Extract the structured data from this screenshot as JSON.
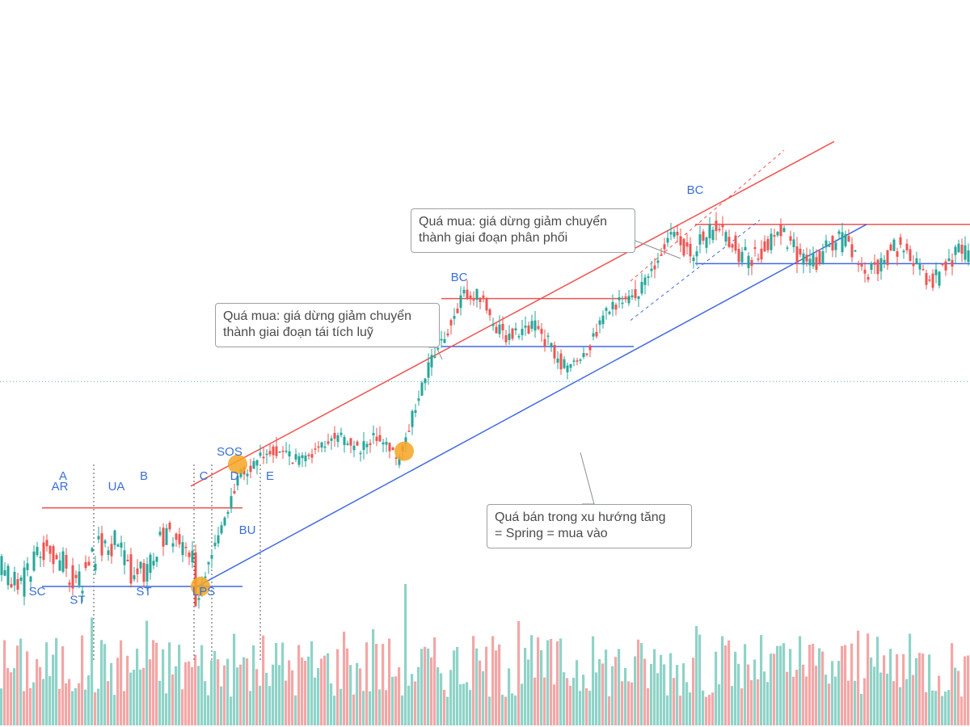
{
  "chart_data": {
    "type": "candlestick",
    "title": "",
    "xlabel": "",
    "ylabel": "",
    "grid": false,
    "ylim": [
      0,
      100
    ],
    "volume_ylim": [
      0,
      100
    ],
    "colors": {
      "up": "#26a69a",
      "down": "#ef5350",
      "up_volume": "#8fd3c8",
      "down_volume": "#f4a6a6",
      "resistance": "#ef5350",
      "support": "#4169e1",
      "label": "#3b6fd4",
      "highlight": "#f5a623",
      "dotted_reference": "#26a69a"
    },
    "segments": [
      {
        "name": "accumulation-range",
        "from": 0,
        "to": 120,
        "start": 14,
        "end": 18,
        "amp": 7,
        "seed": 3
      },
      {
        "name": "spring",
        "from": 120,
        "to": 122,
        "start": 18,
        "end": 6,
        "amp": 1,
        "seed": 5
      },
      {
        "name": "markup-sos",
        "from": 122,
        "to": 150,
        "start": 6,
        "end": 38,
        "amp": 2,
        "seed": 7
      },
      {
        "name": "markup-rally",
        "from": 150,
        "to": 230,
        "start": 38,
        "end": 44,
        "amp": 3,
        "seed": 11
      },
      {
        "name": "pullback-spring",
        "from": 230,
        "to": 245,
        "start": 44,
        "end": 40,
        "amp": 2,
        "seed": 13
      },
      {
        "name": "rally-to-bc",
        "from": 245,
        "to": 285,
        "start": 40,
        "end": 76,
        "amp": 3,
        "seed": 17
      },
      {
        "name": "reaccumulation",
        "from": 285,
        "to": 355,
        "start": 76,
        "end": 62,
        "amp": 4,
        "seed": 19
      },
      {
        "name": "second-markup",
        "from": 355,
        "to": 420,
        "start": 62,
        "end": 90,
        "amp": 3,
        "seed": 23
      },
      {
        "name": "distribution",
        "from": 420,
        "to": 600,
        "start": 90,
        "end": 83,
        "amp": 5,
        "seed": 29
      }
    ],
    "phases": [
      "A",
      "B",
      "C",
      "D",
      "E"
    ],
    "phase_dividers_x": [
      58,
      120,
      131,
      161
    ],
    "event_labels": [
      {
        "text": "SC",
        "x": 23,
        "y": 8
      },
      {
        "text": "AR",
        "x": 37,
        "y": 32
      },
      {
        "text": "ST",
        "x": 48,
        "y": 6
      },
      {
        "text": "UA",
        "x": 72,
        "y": 32
      },
      {
        "text": "ST",
        "x": 89,
        "y": 8
      },
      {
        "text": "LPS",
        "x": 126,
        "y": 8
      },
      {
        "text": "SOS",
        "x": 142,
        "y": 40
      },
      {
        "text": "BU",
        "x": 153,
        "y": 22
      },
      {
        "text": "BC",
        "x": 284,
        "y": 80
      },
      {
        "text": "BC",
        "x": 430,
        "y": 100
      }
    ],
    "levels": [
      {
        "name": "ar-resistance",
        "type": "resistance",
        "from": 26,
        "to": 150,
        "value": 28
      },
      {
        "name": "sc-support",
        "type": "support",
        "from": 26,
        "to": 150,
        "value": 10
      },
      {
        "name": "bc-resistance",
        "type": "resistance",
        "from": 273,
        "to": 390,
        "value": 76
      },
      {
        "name": "reaccum-support",
        "type": "support",
        "from": 273,
        "to": 392,
        "value": 65
      },
      {
        "name": "distribution-resistance",
        "type": "resistance",
        "from": 430,
        "to": 600,
        "value": 93
      },
      {
        "name": "distribution-support",
        "type": "support",
        "from": 430,
        "to": 600,
        "value": 84
      }
    ],
    "trendlines": [
      {
        "name": "upper-channel",
        "type": "resistance",
        "from": [
          118,
          33
        ],
        "to": [
          516,
          112
        ],
        "dashed": false
      },
      {
        "name": "lower-channel",
        "type": "support",
        "from": [
          122,
          10
        ],
        "to": [
          536,
          93
        ],
        "dashed": false
      },
      {
        "name": "inner-channel-upper",
        "type": "resistance",
        "from": [
          390,
          80
        ],
        "to": [
          485,
          110
        ],
        "dashed": true
      },
      {
        "name": "inner-channel-lower",
        "type": "support",
        "from": [
          390,
          71
        ],
        "to": [
          470,
          94
        ],
        "dashed": true
      }
    ],
    "highlights": [
      {
        "name": "lps-point",
        "x": 124,
        "y": 10
      },
      {
        "name": "sos-point",
        "x": 147,
        "y": 38
      },
      {
        "name": "spring-point",
        "x": 250,
        "y": 41
      }
    ],
    "reference_line_value": 57
  },
  "annotations": {
    "callout_distribution": {
      "line1": "Quá mua: giá dừng giảm chuyển",
      "line2": "thành giai đoạn phân phối"
    },
    "callout_reaccumulation": {
      "line1": "Quá mua: giá dừng giảm chuyển",
      "line2": "thành giai đoạn tái tích luỹ"
    },
    "callout_spring": {
      "line1": "Quá bán trong xu hướng tăng",
      "line2": "= Spring = mua vào"
    }
  }
}
